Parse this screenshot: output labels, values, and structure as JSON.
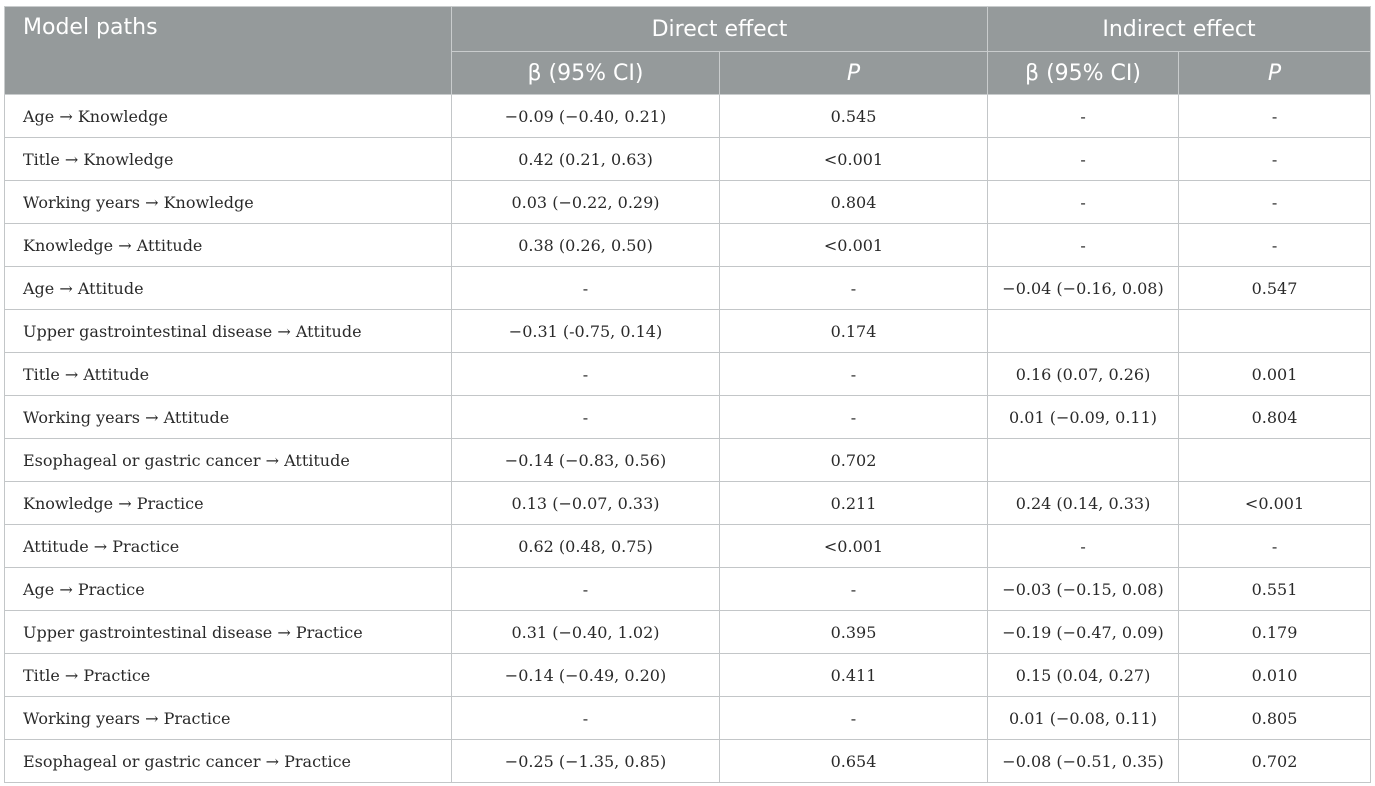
{
  "header": {
    "model_paths": "Model paths",
    "direct_effect": "Direct effect",
    "indirect_effect": "Indirect effect",
    "beta_ci": "β (95% CI)",
    "p": "P"
  },
  "rows": [
    {
      "path": "Age →  Knowledge",
      "d_beta": "−0.09 (−0.40, 0.21)",
      "d_p": "0.545",
      "i_beta": "-",
      "i_p": "-"
    },
    {
      "path": "Title →  Knowledge",
      "d_beta": "0.42 (0.21, 0.63)",
      "d_p": "<0.001",
      "i_beta": "-",
      "i_p": "-"
    },
    {
      "path": "Working years →  Knowledge",
      "d_beta": "0.03 (−0.22, 0.29)",
      "d_p": "0.804",
      "i_beta": "-",
      "i_p": "-"
    },
    {
      "path": "Knowledge →  Attitude",
      "d_beta": "0.38 (0.26, 0.50)",
      "d_p": "<0.001",
      "i_beta": "-",
      "i_p": "-"
    },
    {
      "path": "Age →  Attitude",
      "d_beta": "-",
      "d_p": "-",
      "i_beta": "−0.04 (−0.16, 0.08)",
      "i_p": "0.547"
    },
    {
      "path": "Upper gastrointestinal disease →  Attitude",
      "d_beta": "−0.31 (-0.75, 0.14)",
      "d_p": "0.174",
      "i_beta": "",
      "i_p": ""
    },
    {
      "path": "Title →  Attitude",
      "d_beta": "-",
      "d_p": "-",
      "i_beta": "0.16 (0.07, 0.26)",
      "i_p": "0.001"
    },
    {
      "path": "Working years →  Attitude",
      "d_beta": "-",
      "d_p": "-",
      "i_beta": "0.01 (−0.09, 0.11)",
      "i_p": "0.804"
    },
    {
      "path": "Esophageal or gastric cancer →  Attitude",
      "d_beta": "−0.14 (−0.83, 0.56)",
      "d_p": "0.702",
      "i_beta": "",
      "i_p": ""
    },
    {
      "path": "Knowledge →  Practice",
      "d_beta": "0.13 (−0.07, 0.33)",
      "d_p": "0.211",
      "i_beta": "0.24 (0.14, 0.33)",
      "i_p": "<0.001"
    },
    {
      "path": "Attitude →  Practice",
      "d_beta": "0.62 (0.48, 0.75)",
      "d_p": "<0.001",
      "i_beta": "-",
      "i_p": "-"
    },
    {
      "path": "Age →  Practice",
      "d_beta": "-",
      "d_p": "-",
      "i_beta": "−0.03 (−0.15, 0.08)",
      "i_p": "0.551"
    },
    {
      "path": "Upper gastrointestinal disease →  Practice",
      "d_beta": "0.31 (−0.40, 1.02)",
      "d_p": "0.395",
      "i_beta": "−0.19 (−0.47, 0.09)",
      "i_p": "0.179"
    },
    {
      "path": "Title →  Practice",
      "d_beta": "−0.14 (−0.49, 0.20)",
      "d_p": "0.411",
      "i_beta": "0.15 (0.04, 0.27)",
      "i_p": "0.010"
    },
    {
      "path": "Working years →  Practice",
      "d_beta": "-",
      "d_p": "-",
      "i_beta": "0.01 (−0.08, 0.11)",
      "i_p": "0.805"
    },
    {
      "path": "Esophageal or gastric cancer →  Practice",
      "d_beta": "−0.25 (−1.35, 0.85)",
      "d_p": "0.654",
      "i_beta": "−0.08 (−0.51, 0.35)",
      "i_p": "0.702"
    }
  ]
}
